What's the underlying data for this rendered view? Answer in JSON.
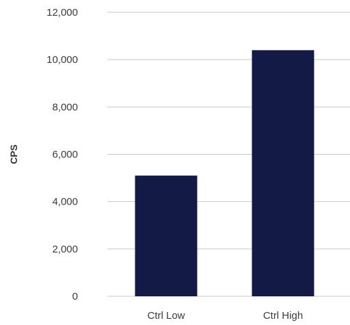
{
  "chart_data": {
    "type": "bar",
    "title": "",
    "xlabel": "",
    "ylabel": "CPS",
    "categories": [
      "Ctrl Low",
      "Ctrl High"
    ],
    "values": [
      5100,
      10400
    ],
    "ylim": [
      0,
      12000
    ],
    "yticks": [
      0,
      2000,
      4000,
      6000,
      8000,
      10000,
      12000
    ],
    "ytick_labels": [
      "0",
      "2,000",
      "4,000",
      "6,000",
      "8,000",
      "10,000",
      "12,000"
    ],
    "grid": true,
    "legend": "none",
    "bar_color": "#131a45",
    "grid_color": "#c8c8c8"
  }
}
